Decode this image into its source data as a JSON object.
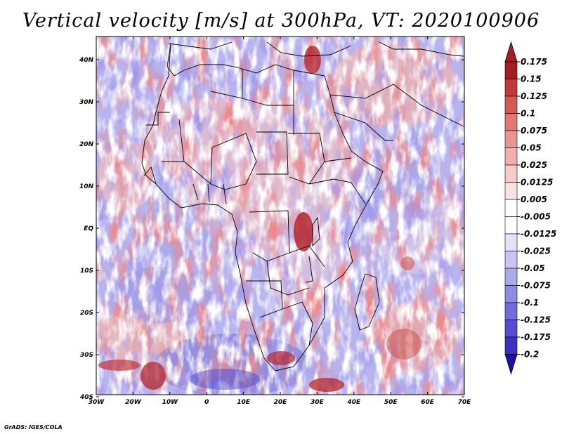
{
  "title": "Vertical velocity [m/s] at 300hPa, VT: 2020100906",
  "credit": "GrADS: IGES/COLA",
  "lon_ticks": [
    "30W",
    "20W",
    "10W",
    "0",
    "10E",
    "20E",
    "30E",
    "40E",
    "50E",
    "60E",
    "70E"
  ],
  "lat_ticks": [
    "40N",
    "30N",
    "20N",
    "10N",
    "EQ",
    "10S",
    "20S",
    "30S",
    "40S"
  ],
  "colorbar": [
    {
      "label": "0.175",
      "color": "#a51c22"
    },
    {
      "label": "0.15",
      "color": "#c23a37"
    },
    {
      "label": "0.125",
      "color": "#d45a55"
    },
    {
      "label": "0.1",
      "color": "#e07873"
    },
    {
      "label": "0.075",
      "color": "#e99592"
    },
    {
      "label": "0.05",
      "color": "#f0b1ae"
    },
    {
      "label": "0.025",
      "color": "#f6cbc9"
    },
    {
      "label": "0.0125",
      "color": "#fae2e1"
    },
    {
      "label": "0.005",
      "color": "#ffffff"
    },
    {
      "label": "-0.005",
      "color": "#ffffff"
    },
    {
      "label": "-0.0125",
      "color": "#e4e2f8"
    },
    {
      "label": "-0.025",
      "color": "#c8c5f2"
    },
    {
      "label": "-0.05",
      "color": "#aca8ec"
    },
    {
      "label": "-0.075",
      "color": "#8f8ae4"
    },
    {
      "label": "-0.1",
      "color": "#726cdc"
    },
    {
      "label": "-0.125",
      "color": "#544dd2"
    },
    {
      "label": "-0.175",
      "color": "#3a30c4"
    },
    {
      "label": "-0.2",
      "color": "#2a1fb0"
    }
  ],
  "top_color": "#a51c22",
  "bottom_color": "#2010a0"
}
